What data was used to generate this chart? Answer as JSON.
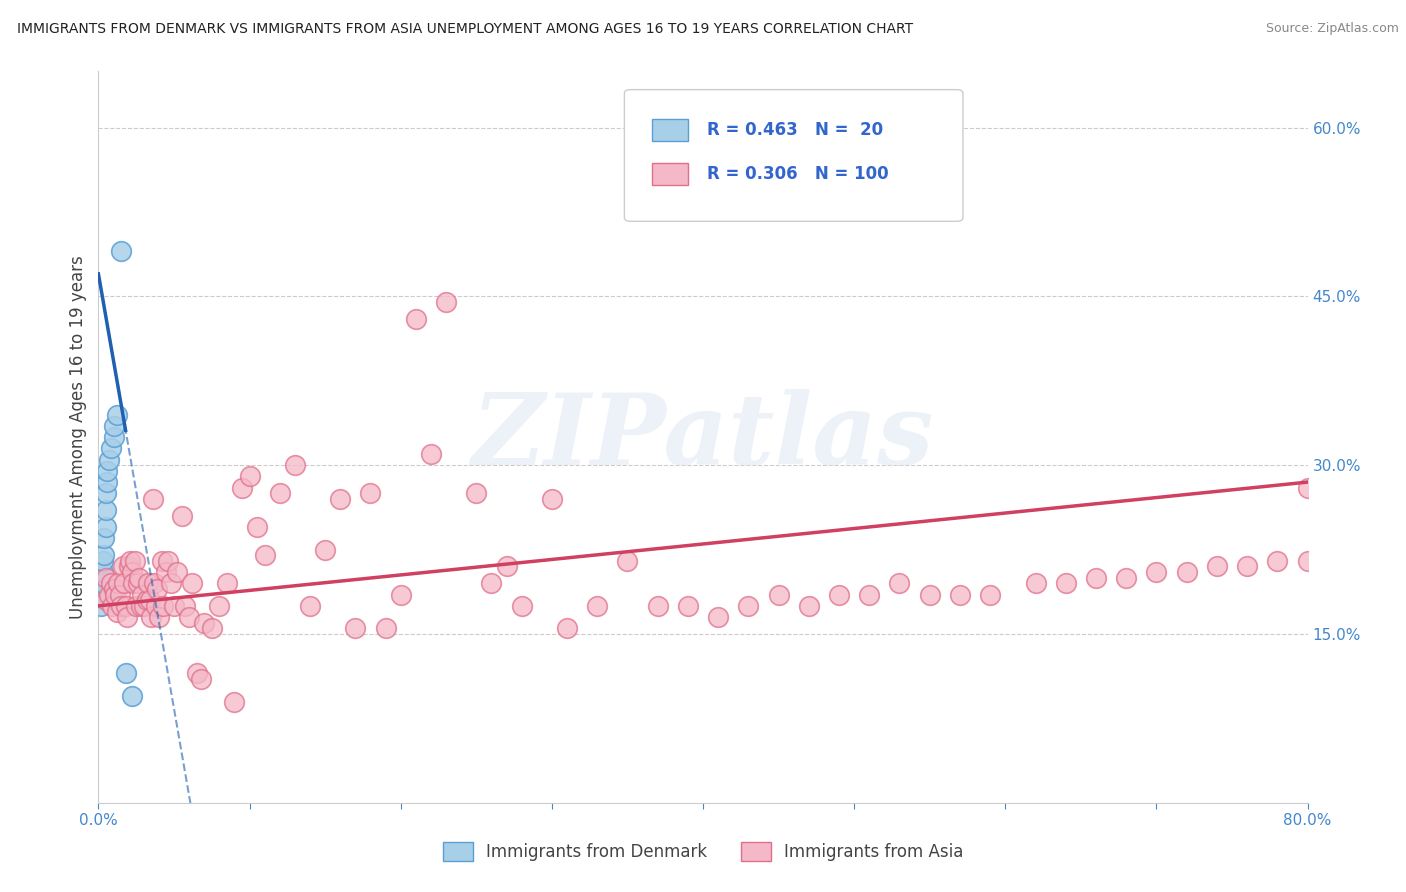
{
  "title": "IMMIGRANTS FROM DENMARK VS IMMIGRANTS FROM ASIA UNEMPLOYMENT AMONG AGES 16 TO 19 YEARS CORRELATION CHART",
  "source": "Source: ZipAtlas.com",
  "ylabel": "Unemployment Among Ages 16 to 19 years",
  "xlim": [
    0.0,
    0.8
  ],
  "ylim": [
    0.0,
    0.65
  ],
  "xticks": [
    0.0,
    0.1,
    0.2,
    0.3,
    0.4,
    0.5,
    0.6,
    0.7,
    0.8
  ],
  "xticklabels": [
    "0.0%",
    "",
    "",
    "",
    "",
    "",
    "",
    "",
    "80.0%"
  ],
  "yticks_right": [
    0.15,
    0.3,
    0.45,
    0.6
  ],
  "ytick_right_labels": [
    "15.0%",
    "30.0%",
    "45.0%",
    "60.0%"
  ],
  "color_denmark": "#a8cfe8",
  "color_denmark_edge": "#5a9fd4",
  "color_asia": "#f4b8c8",
  "color_asia_edge": "#e0708a",
  "color_denmark_line": "#2060b0",
  "color_asia_line": "#d04060",
  "background_color": "#ffffff",
  "watermark_text": "ZIPatlas",
  "legend_label_denmark": "Immigrants from Denmark",
  "legend_label_asia": "Immigrants from Asia",
  "denmark_scatter_x": [
    0.002,
    0.002,
    0.003,
    0.003,
    0.003,
    0.004,
    0.004,
    0.005,
    0.005,
    0.005,
    0.006,
    0.006,
    0.007,
    0.008,
    0.01,
    0.01,
    0.012,
    0.015,
    0.018,
    0.022
  ],
  "denmark_scatter_y": [
    0.175,
    0.185,
    0.195,
    0.205,
    0.215,
    0.22,
    0.235,
    0.245,
    0.26,
    0.275,
    0.285,
    0.295,
    0.305,
    0.315,
    0.325,
    0.335,
    0.345,
    0.49,
    0.115,
    0.095
  ],
  "asia_scatter_x": [
    0.005,
    0.005,
    0.007,
    0.008,
    0.009,
    0.01,
    0.011,
    0.012,
    0.013,
    0.014,
    0.015,
    0.016,
    0.017,
    0.018,
    0.019,
    0.02,
    0.021,
    0.022,
    0.023,
    0.024,
    0.025,
    0.026,
    0.027,
    0.028,
    0.029,
    0.03,
    0.032,
    0.033,
    0.034,
    0.035,
    0.036,
    0.037,
    0.038,
    0.039,
    0.04,
    0.042,
    0.043,
    0.045,
    0.046,
    0.048,
    0.05,
    0.052,
    0.055,
    0.057,
    0.06,
    0.062,
    0.065,
    0.068,
    0.07,
    0.075,
    0.08,
    0.085,
    0.09,
    0.095,
    0.1,
    0.105,
    0.11,
    0.12,
    0.13,
    0.14,
    0.15,
    0.16,
    0.17,
    0.18,
    0.19,
    0.2,
    0.21,
    0.22,
    0.23,
    0.25,
    0.26,
    0.27,
    0.28,
    0.3,
    0.31,
    0.33,
    0.35,
    0.37,
    0.39,
    0.41,
    0.43,
    0.45,
    0.47,
    0.49,
    0.51,
    0.53,
    0.55,
    0.57,
    0.59,
    0.62,
    0.64,
    0.66,
    0.68,
    0.7,
    0.72,
    0.74,
    0.76,
    0.78,
    0.8,
    0.8
  ],
  "asia_scatter_y": [
    0.18,
    0.2,
    0.185,
    0.195,
    0.175,
    0.19,
    0.185,
    0.17,
    0.195,
    0.185,
    0.175,
    0.21,
    0.195,
    0.175,
    0.165,
    0.21,
    0.215,
    0.205,
    0.195,
    0.215,
    0.175,
    0.195,
    0.2,
    0.175,
    0.185,
    0.175,
    0.18,
    0.195,
    0.18,
    0.165,
    0.27,
    0.195,
    0.175,
    0.19,
    0.165,
    0.215,
    0.175,
    0.205,
    0.215,
    0.195,
    0.175,
    0.205,
    0.255,
    0.175,
    0.165,
    0.195,
    0.115,
    0.11,
    0.16,
    0.155,
    0.175,
    0.195,
    0.09,
    0.28,
    0.29,
    0.245,
    0.22,
    0.275,
    0.3,
    0.175,
    0.225,
    0.27,
    0.155,
    0.275,
    0.155,
    0.185,
    0.43,
    0.31,
    0.445,
    0.275,
    0.195,
    0.21,
    0.175,
    0.27,
    0.155,
    0.175,
    0.215,
    0.175,
    0.175,
    0.165,
    0.175,
    0.185,
    0.175,
    0.185,
    0.185,
    0.195,
    0.185,
    0.185,
    0.185,
    0.195,
    0.195,
    0.2,
    0.2,
    0.205,
    0.205,
    0.21,
    0.21,
    0.215,
    0.215,
    0.28
  ],
  "dk_line_x0": 0.0,
  "dk_line_x1": 0.022,
  "dk_line_y0": 0.47,
  "dk_line_y1": 0.3,
  "dk_line_solid_x0": 0.0,
  "dk_line_solid_x1": 0.018,
  "dk_line_dash_x0": 0.0,
  "dk_line_dash_x1": 0.065,
  "as_line_x0": 0.0,
  "as_line_x1": 0.8,
  "as_line_y0": 0.175,
  "as_line_y1": 0.285
}
